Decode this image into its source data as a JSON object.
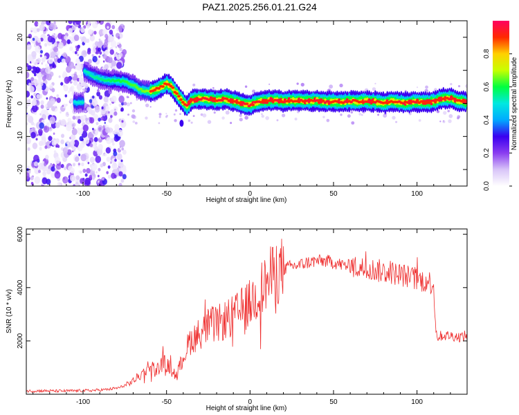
{
  "title": "PAZ1.2025.256.01.21.G24",
  "colorbar": {
    "label": "Normalized spectral amplitude",
    "ticks": [
      "0.0",
      "0.2",
      "0.4",
      "0.6",
      "0.8"
    ],
    "tick_values": [
      0.0,
      0.2,
      0.4,
      0.6,
      0.8
    ],
    "range": [
      0,
      1
    ],
    "colors": [
      "#ffffff",
      "#d8c4f8",
      "#8a3df0",
      "#3a00f0",
      "#00aaff",
      "#00e8e0",
      "#00ff40",
      "#c8ff00",
      "#ffd000",
      "#ff2a00",
      "#ff0060"
    ]
  },
  "chart_data": [
    {
      "type": "heatmap",
      "xlabel": "Height of straight line (km)",
      "ylabel": "Frequency (Hz)",
      "xlim": [
        -134,
        130
      ],
      "ylim": [
        -25,
        25
      ],
      "xticks": [
        -100,
        -50,
        0,
        50,
        100
      ],
      "yticks": [
        -20,
        -10,
        0,
        10,
        20
      ],
      "grid": false,
      "ridge": {
        "x": [
          -100,
          -95,
          -90,
          -85,
          -80,
          -75,
          -70,
          -65,
          -60,
          -55,
          -50,
          -47,
          -44,
          -41,
          -38,
          -35,
          -30,
          -25,
          -20,
          -15,
          -10,
          -5,
          0,
          5,
          10,
          15,
          20,
          25,
          30,
          35,
          40,
          45,
          50,
          55,
          60,
          65,
          70,
          75,
          80,
          85,
          90,
          95,
          100,
          105,
          110,
          115,
          120,
          125,
          130
        ],
        "y": [
          10,
          8.5,
          7.5,
          7,
          6.8,
          6.5,
          5.5,
          4,
          3.5,
          4.5,
          6,
          5,
          3,
          1,
          -1,
          1,
          1.5,
          1.2,
          1,
          1.3,
          0.8,
          0,
          -0.6,
          0.5,
          0.8,
          1,
          0.6,
          0.9,
          0.7,
          0.8,
          0.9,
          0.5,
          0.6,
          0.4,
          0.7,
          0.6,
          0.8,
          0.5,
          0.2,
          0.6,
          0.3,
          0.2,
          0.5,
          0.2,
          0.6,
          1.6,
          1.5,
          0.8,
          0.3
        ]
      }
    },
    {
      "type": "line",
      "xlabel": "Height of straight line (km)",
      "ylabel": "SNR (10 * v/v)",
      "xlim": [
        -134,
        130
      ],
      "ylim": [
        0,
        6200
      ],
      "xticks": [
        -100,
        -50,
        0,
        50,
        100
      ],
      "yticks": [
        2000,
        4000,
        6000
      ],
      "series": [
        {
          "color": "#ee2a2a",
          "x": [
            -134,
            -125,
            -115,
            -105,
            -95,
            -85,
            -78,
            -72,
            -68,
            -64,
            -60,
            -56,
            -52,
            -48,
            -44,
            -40,
            -36,
            -32,
            -28,
            -24,
            -20,
            -16,
            -12,
            -8,
            -4,
            0,
            5,
            10,
            15,
            20,
            25,
            30,
            35,
            40,
            45,
            50,
            55,
            60,
            65,
            70,
            75,
            80,
            85,
            90,
            95,
            100,
            105,
            108,
            110,
            111,
            112,
            115,
            120,
            125,
            130
          ],
          "y": [
            120,
            130,
            120,
            130,
            140,
            180,
            250,
            420,
            600,
            800,
            1100,
            900,
            1200,
            1000,
            700,
            1400,
            2000,
            2200,
            2400,
            2600,
            2600,
            2750,
            2850,
            3000,
            3200,
            3400,
            3800,
            4200,
            4550,
            4700,
            4800,
            4850,
            4950,
            5000,
            5000,
            4950,
            4850,
            4800,
            4750,
            4700,
            4650,
            4600,
            4550,
            4500,
            4400,
            4300,
            4250,
            4200,
            4150,
            2600,
            2150,
            2200,
            2200,
            2150,
            2200
          ]
        }
      ]
    }
  ]
}
